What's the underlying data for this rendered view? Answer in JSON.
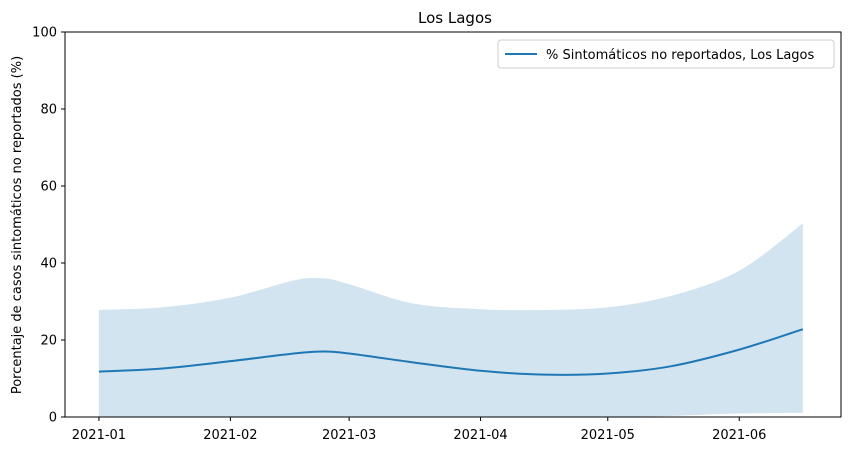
{
  "chart_data": {
    "type": "line",
    "title": "Los Lagos",
    "xlabel": "",
    "ylabel": "Porcentaje de casos sintomáticos no reportados (%)",
    "ylim": [
      0,
      100
    ],
    "yticks": [
      0,
      20,
      40,
      60,
      80,
      100
    ],
    "xticks": [
      {
        "date": "2021-01-01",
        "label": "2021-01"
      },
      {
        "date": "2021-02-01",
        "label": "2021-02"
      },
      {
        "date": "2021-03-01",
        "label": "2021-03"
      },
      {
        "date": "2021-04-01",
        "label": "2021-04"
      },
      {
        "date": "2021-05-01",
        "label": "2021-05"
      },
      {
        "date": "2021-06-01",
        "label": "2021-06"
      }
    ],
    "xlim": [
      "2020-12-24",
      "2021-06-25"
    ],
    "grid": false,
    "legend_position": "top-right",
    "colors": {
      "line": "#1f77b4",
      "band": "#1f77b4"
    },
    "series": [
      {
        "name": "% Sintomáticos no reportados, Los Lagos",
        "x": [
          "2021-01-01",
          "2021-01-16",
          "2021-02-01",
          "2021-02-16",
          "2021-02-23",
          "2021-03-01",
          "2021-03-16",
          "2021-04-01",
          "2021-04-16",
          "2021-05-01",
          "2021-05-16",
          "2021-06-01",
          "2021-06-16"
        ],
        "y": [
          11.8,
          12.6,
          14.5,
          16.5,
          17.0,
          16.5,
          14.2,
          12.0,
          11.0,
          11.3,
          13.2,
          17.5,
          22.8
        ],
        "lower": [
          0,
          0,
          0,
          0,
          0,
          0,
          0,
          0,
          0,
          0,
          0.3,
          0.9,
          1.1
        ],
        "upper": [
          27.8,
          28.5,
          31.0,
          35.5,
          36.0,
          34.5,
          29.5,
          28.0,
          27.8,
          28.5,
          31.5,
          38.0,
          50.3
        ]
      }
    ]
  }
}
